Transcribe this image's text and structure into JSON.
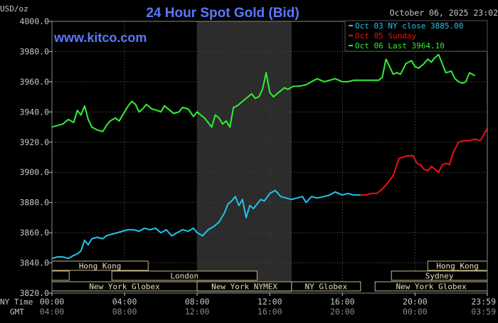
{
  "chart_data": {
    "type": "line",
    "title": "24 Hour Spot Gold (Bid)",
    "site": "www.kitco.com",
    "unit_label": "USD/oz",
    "timestamp": "October 06, 2025 23:02",
    "ylim": [
      3820,
      4000
    ],
    "xlim_hours": [
      0,
      23.983
    ],
    "y_ticks": [
      "3820.0",
      "3840.0",
      "3860.0",
      "3880.0",
      "3900.0",
      "3920.0",
      "3940.0",
      "3960.0",
      "3980.0",
      "4000.0"
    ],
    "x_ticks_ny": [
      "00:00",
      "04:00",
      "08:00",
      "12:00",
      "16:00",
      "20:00",
      "23:59"
    ],
    "x_ticks_gmt": [
      "04:00",
      "08:00",
      "12:00",
      "16:00",
      "20:00",
      "00:00",
      "03:59"
    ],
    "x_tick_hours": [
      0,
      4,
      8,
      12,
      16,
      20,
      23.983
    ],
    "time_labels": {
      "ny": "NY Time",
      "gmt": "GMT"
    },
    "shaded_band_hours": [
      8,
      13.2
    ],
    "legend": [
      {
        "label": "Oct 03 NY close 3885.00",
        "color": "#22c4ee"
      },
      {
        "label": "Oct 05 Sunday",
        "color": "#ee1111"
      },
      {
        "label": "Oct 06 Last 3964.10",
        "color": "#33ee33"
      }
    ],
    "sessions": [
      {
        "label": "Hong Kong",
        "row": 0,
        "ranges": [
          [
            0,
            5.3
          ]
        ]
      },
      {
        "label": "Hong Kong",
        "row": 0,
        "ranges": [
          [
            20.7,
            23.983
          ]
        ]
      },
      {
        "label": "London",
        "row": 1,
        "ranges": [
          [
            0,
            0.95
          ],
          [
            3.3,
            11.3
          ]
        ]
      },
      {
        "label": "Sydney",
        "row": 1,
        "ranges": [
          [
            18.7,
            23.983
          ]
        ]
      },
      {
        "label": "New York Globex",
        "row": 2,
        "ranges": [
          [
            0,
            8
          ]
        ]
      },
      {
        "label": "New York NYMEX",
        "row": 2,
        "ranges": [
          [
            8,
            13.2
          ]
        ]
      },
      {
        "label": "NY Globex",
        "row": 2,
        "ranges": [
          [
            13.2,
            17
          ]
        ]
      },
      {
        "label": "New York Globex",
        "row": 2,
        "ranges": [
          [
            17.8,
            23.983
          ]
        ]
      }
    ],
    "series": [
      {
        "name": "Oct 06 Last 3964.10",
        "color": "#33ee33",
        "x": [
          0,
          0.3,
          0.6,
          0.9,
          1.2,
          1.4,
          1.6,
          1.8,
          2.0,
          2.2,
          2.5,
          2.8,
          3.0,
          3.2,
          3.5,
          3.7,
          4.0,
          4.2,
          4.4,
          4.6,
          4.8,
          5.0,
          5.2,
          5.5,
          5.8,
          6.0,
          6.2,
          6.5,
          6.7,
          7.0,
          7.2,
          7.5,
          7.8,
          8.0,
          8.2,
          8.4,
          8.6,
          8.8,
          9.0,
          9.2,
          9.4,
          9.6,
          9.8,
          10.0,
          10.2,
          10.5,
          10.8,
          11.0,
          11.2,
          11.4,
          11.6,
          11.8,
          12.0,
          12.2,
          12.5,
          12.8,
          13.0,
          13.3,
          13.6,
          14.0,
          14.3,
          14.6,
          15.0,
          15.3,
          15.6,
          16.0,
          16.3,
          16.6,
          17.0,
          17.3,
          17.6,
          18.0,
          18.2,
          18.4,
          18.6,
          18.8,
          19.0,
          19.2,
          19.5,
          19.8,
          20.0,
          20.2,
          20.5,
          20.7,
          20.9,
          21.1,
          21.3,
          21.5,
          21.7,
          22.0,
          22.2,
          22.4,
          22.6,
          22.8,
          23.0,
          23.3
        ],
        "y": [
          3930,
          3931,
          3932,
          3935,
          3933,
          3941,
          3938,
          3944,
          3935,
          3930,
          3928,
          3927,
          3931,
          3934,
          3936,
          3934,
          3940,
          3944,
          3947,
          3945,
          3940,
          3942,
          3945,
          3942,
          3941,
          3940,
          3944,
          3941,
          3939,
          3940,
          3943,
          3942,
          3937,
          3940,
          3938,
          3936,
          3933,
          3930,
          3938,
          3936,
          3932,
          3934,
          3930,
          3943,
          3944,
          3947,
          3950,
          3952,
          3949,
          3950,
          3955,
          3966,
          3953,
          3950,
          3953,
          3956,
          3955,
          3957,
          3957,
          3958,
          3960,
          3962,
          3960,
          3961,
          3962,
          3960,
          3960,
          3961,
          3961,
          3961,
          3961,
          3961,
          3963,
          3975,
          3970,
          3965,
          3966,
          3965,
          3972,
          3974,
          3970,
          3969,
          3972,
          3975,
          3973,
          3976,
          3978,
          3972,
          3966,
          3967,
          3962,
          3960,
          3959,
          3960,
          3966,
          3964
        ]
      },
      {
        "name": "Oct 03 NY close 3885.00",
        "color": "#22c4ee",
        "x": [
          0,
          0.3,
          0.6,
          0.9,
          1.2,
          1.4,
          1.6,
          1.8,
          2.0,
          2.2,
          2.5,
          2.8,
          3.0,
          3.3,
          3.6,
          3.9,
          4.2,
          4.5,
          4.8,
          5.1,
          5.4,
          5.7,
          6.0,
          6.3,
          6.6,
          6.9,
          7.2,
          7.5,
          7.8,
          8.0,
          8.3,
          8.6,
          8.9,
          9.2,
          9.5,
          9.7,
          9.9,
          10.1,
          10.3,
          10.5,
          10.7,
          10.9,
          11.1,
          11.3,
          11.5,
          11.7,
          12.0,
          12.3,
          12.6,
          12.9,
          13.2,
          13.5,
          13.8,
          14.0,
          14.3,
          14.6,
          15.0,
          15.3,
          15.6,
          16.0,
          16.3,
          16.6,
          17.0
        ],
        "y": [
          3843,
          3844,
          3844,
          3843,
          3845,
          3846,
          3848,
          3855,
          3852,
          3856,
          3857,
          3856,
          3858,
          3859,
          3860,
          3861,
          3862,
          3862,
          3861,
          3863,
          3862,
          3863,
          3860,
          3862,
          3858,
          3860,
          3862,
          3861,
          3863,
          3860,
          3858,
          3862,
          3864,
          3867,
          3873,
          3879,
          3881,
          3884,
          3878,
          3882,
          3870,
          3878,
          3876,
          3879,
          3882,
          3881,
          3886,
          3888,
          3884,
          3883,
          3882,
          3883,
          3884,
          3880,
          3884,
          3883,
          3884,
          3885,
          3887,
          3885,
          3886,
          3885,
          3885
        ]
      },
      {
        "name": "Oct 05 Sunday",
        "color": "#ee1111",
        "x": [
          17.0,
          17.3,
          17.6,
          17.9,
          18.2,
          18.5,
          18.8,
          19.0,
          19.1,
          19.3,
          19.6,
          19.9,
          20.1,
          20.3,
          20.5,
          20.7,
          20.9,
          21.1,
          21.3,
          21.5,
          21.7,
          21.9,
          22.1,
          22.4,
          22.7,
          23.0,
          23.3,
          23.6,
          23.98
        ],
        "y": [
          3885,
          3885,
          3886,
          3886,
          3889,
          3893,
          3898,
          3905,
          3909,
          3910,
          3911,
          3911,
          3906,
          3905,
          3902,
          3901,
          3904,
          3902,
          3900,
          3905,
          3906,
          3905,
          3913,
          3920,
          3921,
          3921,
          3922,
          3921,
          3929
        ]
      }
    ]
  }
}
